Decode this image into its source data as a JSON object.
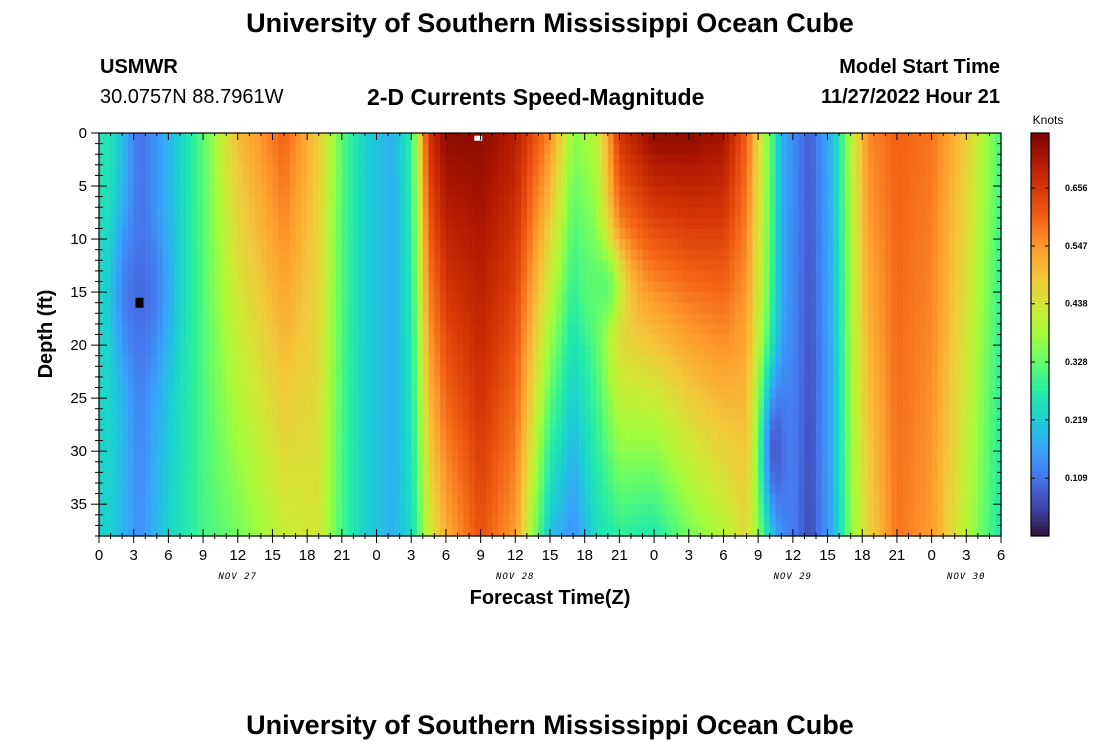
{
  "title": "University of Southern Mississippi Ocean Cube",
  "footer_title": "University of Southern Mississippi Ocean Cube",
  "station": {
    "name": "USMWR",
    "coords": "30.0757N  88.7961W"
  },
  "model": {
    "label": "Model Start Time",
    "value": "11/27/2022 Hour 21"
  },
  "chart_data": {
    "type": "heatmap",
    "title": "2-D Currents Speed-Magnitude",
    "xlabel": "Forecast Time(Z)",
    "ylabel": "Depth (ft)",
    "colorbar_title": "Knots",
    "x_unit": "hours since NOV 27 00Z",
    "xlim": [
      0,
      78
    ],
    "ylim": [
      0,
      38
    ],
    "x_ticks": [
      {
        "hour": 0,
        "label": "0"
      },
      {
        "hour": 3,
        "label": "3"
      },
      {
        "hour": 6,
        "label": "6"
      },
      {
        "hour": 9,
        "label": "9"
      },
      {
        "hour": 12,
        "label": "12"
      },
      {
        "hour": 15,
        "label": "15"
      },
      {
        "hour": 18,
        "label": "18"
      },
      {
        "hour": 21,
        "label": "21"
      },
      {
        "hour": 24,
        "label": "0"
      },
      {
        "hour": 27,
        "label": "3"
      },
      {
        "hour": 30,
        "label": "6"
      },
      {
        "hour": 33,
        "label": "9"
      },
      {
        "hour": 36,
        "label": "12"
      },
      {
        "hour": 39,
        "label": "15"
      },
      {
        "hour": 42,
        "label": "18"
      },
      {
        "hour": 45,
        "label": "21"
      },
      {
        "hour": 48,
        "label": "0"
      },
      {
        "hour": 51,
        "label": "3"
      },
      {
        "hour": 54,
        "label": "6"
      },
      {
        "hour": 57,
        "label": "9"
      },
      {
        "hour": 60,
        "label": "12"
      },
      {
        "hour": 63,
        "label": "15"
      },
      {
        "hour": 66,
        "label": "18"
      },
      {
        "hour": 69,
        "label": "21"
      },
      {
        "hour": 72,
        "label": "0"
      },
      {
        "hour": 75,
        "label": "3"
      },
      {
        "hour": 78,
        "label": "6"
      }
    ],
    "day_labels": [
      {
        "hour": 12,
        "label": "NOV 27"
      },
      {
        "hour": 36,
        "label": "NOV 28"
      },
      {
        "hour": 60,
        "label": "NOV 29"
      },
      {
        "hour": 75,
        "label": "NOV 30"
      }
    ],
    "y_ticks": [
      0,
      5,
      10,
      15,
      20,
      25,
      30,
      35
    ],
    "colorbar": {
      "range": [
        0.0,
        0.76
      ],
      "ticks": [
        {
          "value": 0.109,
          "label": "0.109"
        },
        {
          "value": 0.219,
          "label": "0.219"
        },
        {
          "value": 0.328,
          "label": "0.328"
        },
        {
          "value": 0.438,
          "label": "0.438"
        },
        {
          "value": 0.547,
          "label": "0.547"
        },
        {
          "value": 0.656,
          "label": "0.656"
        }
      ],
      "colors": [
        "#30123b",
        "#4145ab",
        "#4675ed",
        "#39a2fc",
        "#1bcfd4",
        "#24eca6",
        "#61fc6c",
        "#a4fc3b",
        "#d1e834",
        "#f3c63a",
        "#fe9b2d",
        "#f36315",
        "#d93806",
        "#b11901",
        "#7a0402"
      ]
    },
    "features": [
      {
        "t": 1,
        "top": 0.26,
        "bottom": 0.22
      },
      {
        "t": 3.5,
        "top": 0.1,
        "bottom": 0.14
      },
      {
        "t": 6.5,
        "top": 0.2,
        "bottom": 0.24
      },
      {
        "t": 9,
        "top": 0.32,
        "bottom": 0.3
      },
      {
        "t": 12,
        "top": 0.5,
        "bottom": 0.34
      },
      {
        "t": 16,
        "top": 0.6,
        "bottom": 0.42
      },
      {
        "t": 19,
        "top": 0.48,
        "bottom": 0.44
      },
      {
        "t": 21,
        "top": 0.32,
        "bottom": 0.3
      },
      {
        "t": 23,
        "top": 0.22,
        "bottom": 0.22
      },
      {
        "t": 25.5,
        "top": 0.18,
        "bottom": 0.18
      },
      {
        "t": 27,
        "top": 0.28,
        "bottom": 0.24
      },
      {
        "t": 28.5,
        "top": 0.66,
        "bottom": 0.42
      },
      {
        "t": 30,
        "top": 0.74,
        "bottom": 0.52
      },
      {
        "t": 33,
        "top": 0.74,
        "bottom": 0.62
      },
      {
        "t": 36,
        "top": 0.7,
        "bottom": 0.54
      },
      {
        "t": 39,
        "top": 0.56,
        "bottom": 0.2
      },
      {
        "t": 41,
        "top": 0.36,
        "bottom": 0.14
      },
      {
        "t": 43,
        "top": 0.4,
        "bottom": 0.24
      },
      {
        "t": 45,
        "top": 0.66,
        "bottom": 0.28
      },
      {
        "t": 48,
        "top": 0.74,
        "bottom": 0.26
      },
      {
        "t": 51,
        "top": 0.74,
        "bottom": 0.34
      },
      {
        "t": 54,
        "top": 0.72,
        "bottom": 0.4
      },
      {
        "t": 56,
        "top": 0.6,
        "bottom": 0.46
      },
      {
        "t": 58,
        "top": 0.34,
        "bottom": 0.3
      },
      {
        "t": 59,
        "top": 0.18,
        "bottom": 0.16
      },
      {
        "t": 61.5,
        "top": 0.08,
        "bottom": 0.06
      },
      {
        "t": 63.5,
        "top": 0.2,
        "bottom": 0.18
      },
      {
        "t": 65,
        "top": 0.4,
        "bottom": 0.36
      },
      {
        "t": 66.5,
        "top": 0.56,
        "bottom": 0.46
      },
      {
        "t": 69,
        "top": 0.6,
        "bottom": 0.58
      },
      {
        "t": 72,
        "top": 0.58,
        "bottom": 0.54
      },
      {
        "t": 75,
        "top": 0.48,
        "bottom": 0.4
      },
      {
        "t": 77,
        "top": 0.36,
        "bottom": 0.3
      },
      {
        "t": 78,
        "top": 0.3,
        "bottom": 0.26
      }
    ],
    "minima": [
      {
        "t": 3.5,
        "depth": 15,
        "depth_sigma": 7,
        "time_sigma": 2.2,
        "strength": 0.1
      },
      {
        "t": 43.5,
        "depth": 14.5,
        "depth_sigma": 4,
        "time_sigma": 1.8,
        "strength": 0.32
      },
      {
        "t": 58.5,
        "depth": 30,
        "depth_sigma": 8,
        "time_sigma": 1.2,
        "strength": 0.08
      }
    ],
    "markers": [
      {
        "name": "surface-marker",
        "hour": 32.8,
        "depth": 0.3,
        "color": "#ffffff"
      },
      {
        "name": "minimum-marker",
        "hour": 3.5,
        "depth": 16,
        "color": "#000000"
      }
    ]
  }
}
